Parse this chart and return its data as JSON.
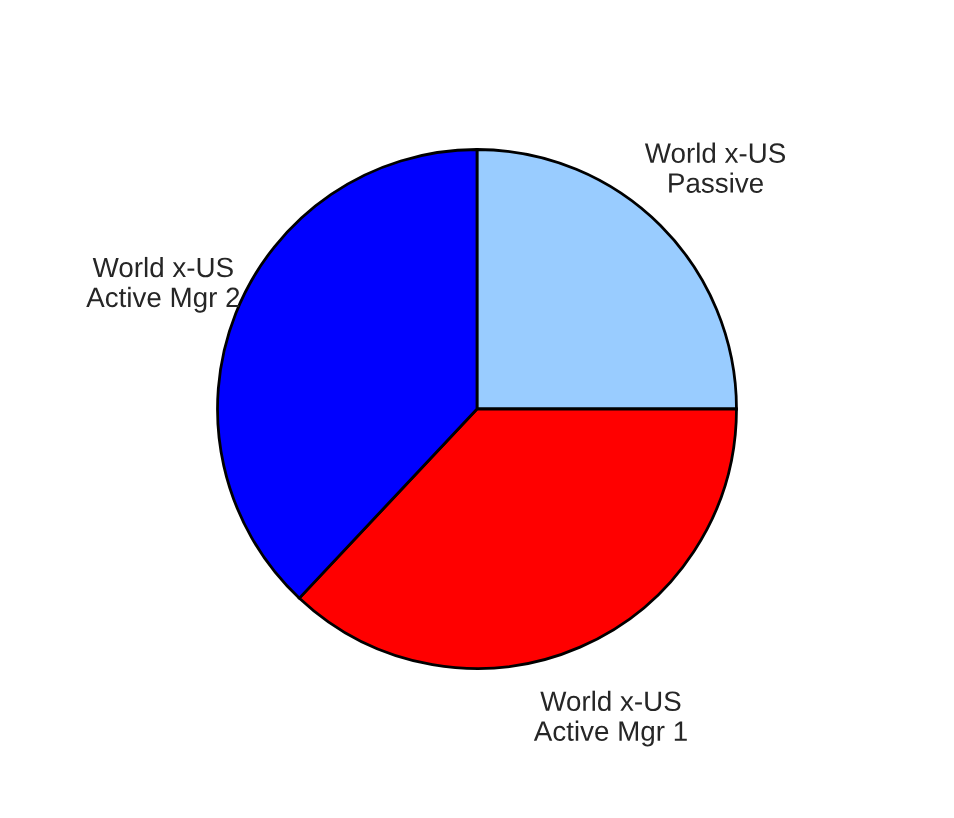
{
  "chart_data": {
    "type": "pie",
    "categories": [
      "World x-US\nPassive",
      "World x-US\nActive Mgr 1",
      "World x-US\nActive Mgr 2"
    ],
    "values": [
      25,
      37,
      38
    ],
    "colors": [
      "#99ccff",
      "#ff0000",
      "#0000ff"
    ],
    "legend": false
  }
}
